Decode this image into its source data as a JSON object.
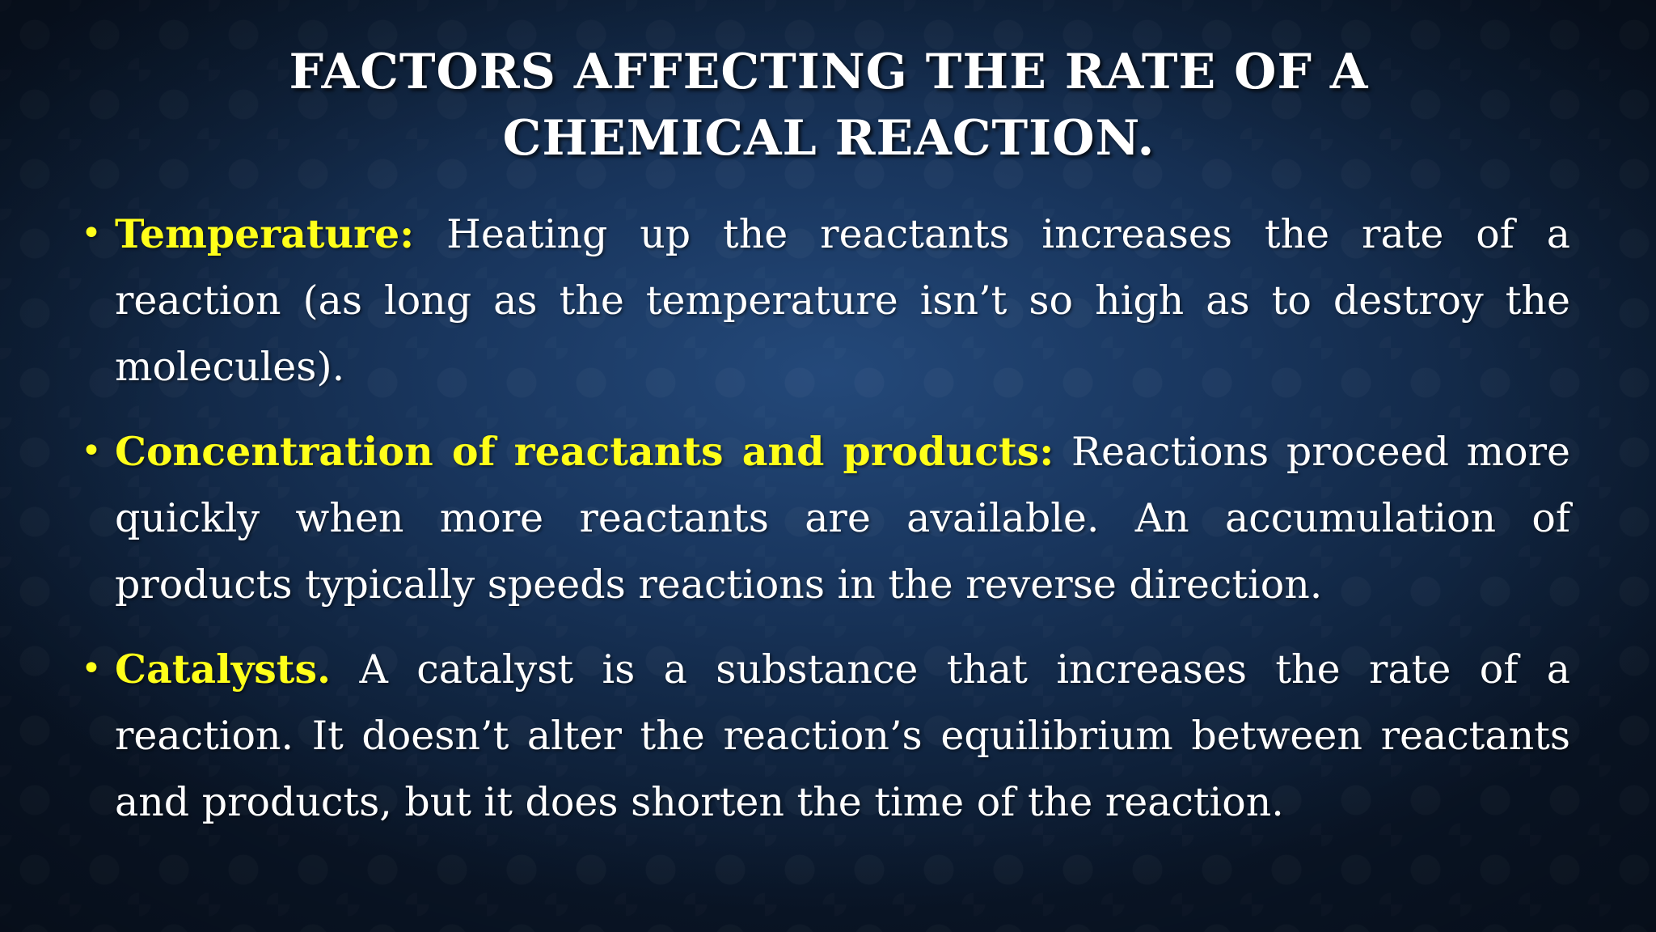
{
  "slide": {
    "title": "Factors Affecting the Rate of a Chemical Reaction.",
    "colors": {
      "background": "#19365e",
      "title_text": "#ffffff",
      "body_text": "#ffffff",
      "highlight": "#ffff1a"
    },
    "bullets": [
      {
        "marker": "•",
        "term": "Temperature:",
        "text": "Heating up the reactants increases the rate of a reaction (as long as the temperature isn’t so high as to destroy the molecules)."
      },
      {
        "marker": "•",
        "term": "Concentration of reactants and products:",
        "text": "Reactions proceed more quickly when more reactants are available. An accumulation of products typically speeds reactions in the reverse direction."
      },
      {
        "marker": "•",
        "term": "Catalysts.",
        "text": "A catalyst is a substance that increases the rate of a reaction. It doesn’t alter the reaction’s equilibrium between reactants and products, but it does shorten the time of the reaction."
      }
    ]
  }
}
